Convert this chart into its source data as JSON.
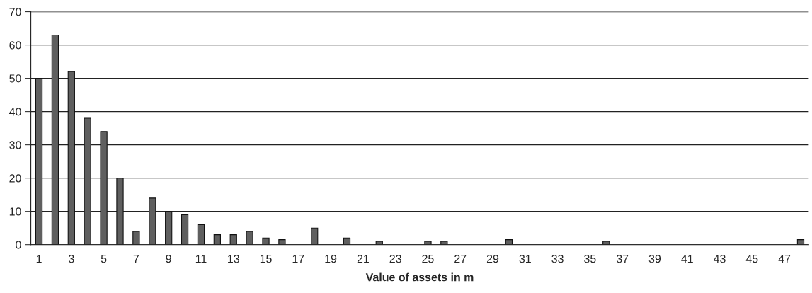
{
  "chart_data": {
    "type": "bar",
    "xlabel": "Value of assets in m",
    "categories": [
      "1",
      null,
      "3",
      null,
      "5",
      null,
      "7",
      null,
      "9",
      null,
      "11",
      null,
      "13",
      null,
      "15",
      null,
      "17",
      null,
      "19",
      null,
      "21",
      null,
      "23",
      null,
      "25",
      null,
      "27",
      null,
      "29",
      null,
      "31",
      null,
      "33",
      null,
      "35",
      null,
      "37",
      null,
      "39",
      null,
      "41",
      null,
      "43",
      null,
      "45",
      null,
      "47",
      null
    ],
    "values": [
      50,
      63,
      52,
      38,
      34,
      20,
      4,
      14,
      10,
      9,
      6,
      3,
      3,
      4,
      2,
      1.5,
      0,
      5,
      0,
      2,
      0,
      1,
      0,
      0,
      1,
      1,
      0,
      0,
      0,
      1.5,
      0,
      0,
      0,
      0,
      0,
      1,
      0,
      0,
      0,
      0,
      0,
      0,
      0,
      0,
      0,
      0,
      0,
      1.5
    ],
    "color": "#5f5f5f",
    "ylim": [
      0,
      70
    ],
    "yticks": [
      0,
      10,
      20,
      30,
      40,
      50,
      60,
      70
    ],
    "grid": "y"
  }
}
